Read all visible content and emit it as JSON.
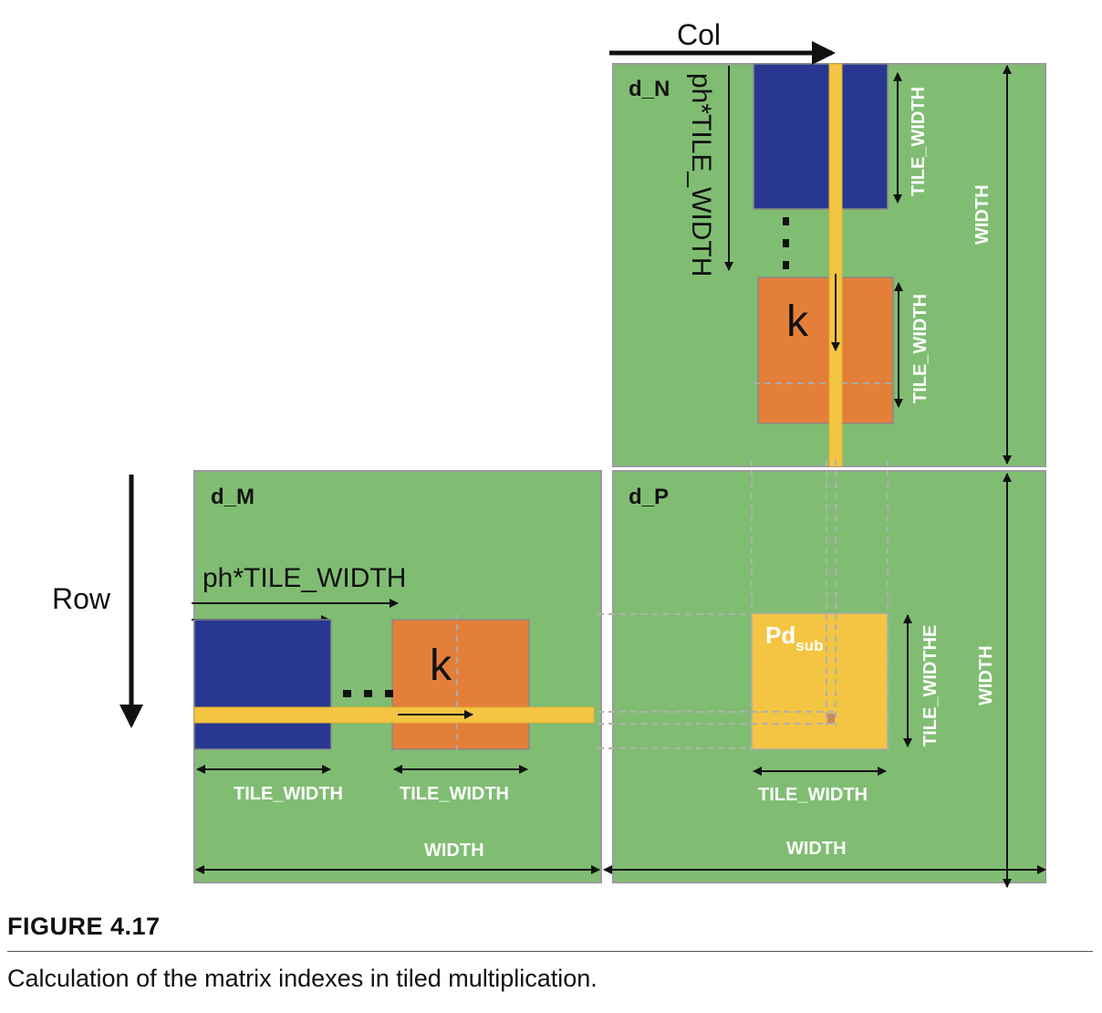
{
  "labels": {
    "d_n": "d_N",
    "d_m": "d_M",
    "d_p": "d_P",
    "col": "Col",
    "row": "Row",
    "ph_tile_width_n": "ph*TILE_WIDTH",
    "ph_tile_width_m": "ph*TILE_WIDTH",
    "k_n": "k",
    "k_m": "k",
    "dots_m": "...",
    "dots_n": "...",
    "pd": "Pd",
    "pd_sub": "sub",
    "tile_width_n_top": "TILE_WIDTH",
    "tile_width_n_k": "TILE_WIDTH",
    "tile_width_m_1": "TILE_WIDTH",
    "tile_width_m_2": "TILE_WIDTH",
    "tile_width_p_bottom": "TILE_WIDTH",
    "tile_widthe_p_right": "TILE_WIDTHE",
    "width_n": "WIDTH",
    "width_p_right": "WIDTH",
    "width_m": "WIDTH",
    "width_p_bottom": "WIDTH"
  },
  "figure": {
    "title": "FIGURE 4.17",
    "caption": "Calculation of the matrix indexes in tiled multiplication."
  },
  "colors": {
    "matrix_green": "#80bd72",
    "matrix_border": "#9a9a9a",
    "tile_blue": "#283891",
    "tile_orange": "#e47f3a",
    "strip_yellow": "#f4c542"
  }
}
